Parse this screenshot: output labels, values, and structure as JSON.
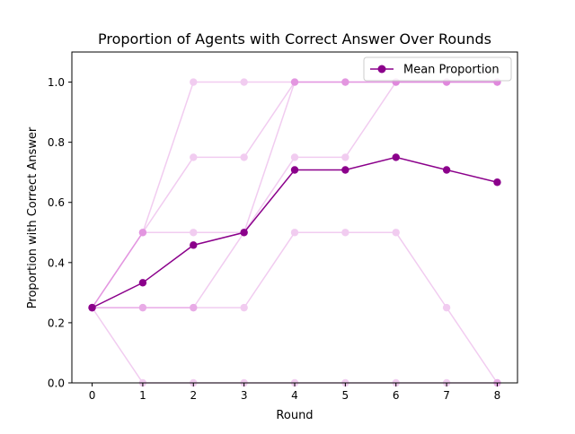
{
  "chart_data": {
    "type": "line",
    "title": "Proportion of Agents with Correct Answer Over Rounds",
    "xlabel": "Round",
    "ylabel": "Proportion with Correct Answer",
    "x": [
      0,
      1,
      2,
      3,
      4,
      5,
      6,
      7,
      8
    ],
    "xlim": [
      -0.4,
      8.4
    ],
    "ylim": [
      0,
      1.1
    ],
    "xticks": [
      0,
      1,
      2,
      3,
      4,
      5,
      6,
      7,
      8
    ],
    "yticks": [
      0.0,
      0.2,
      0.4,
      0.6,
      0.8,
      1.0
    ],
    "ytick_labels": [
      "0.0",
      "0.2",
      "0.4",
      "0.6",
      "0.8",
      "1.0"
    ],
    "legend_position": "top-right",
    "background_series_color": "#DA70D6",
    "background_series_opacity": 0.35,
    "background_series": [
      [
        0.25,
        0.5,
        1.0,
        1.0,
        1.0,
        1.0,
        1.0,
        1.0,
        1.0
      ],
      [
        0.25,
        0.5,
        0.75,
        0.75,
        1.0,
        1.0,
        1.0,
        1.0,
        1.0
      ],
      [
        0.25,
        0.5,
        0.5,
        0.5,
        0.75,
        0.75,
        1.0,
        1.0,
        1.0
      ],
      [
        0.25,
        0.25,
        0.25,
        0.5,
        1.0,
        1.0,
        1.0,
        1.0,
        1.0
      ],
      [
        0.25,
        0.25,
        0.25,
        0.25,
        0.5,
        0.5,
        0.5,
        0.25,
        0.0
      ],
      [
        0.25,
        0.0,
        0.0,
        0.0,
        0.0,
        0.0,
        0.0,
        0.0,
        0.0
      ]
    ],
    "series": [
      {
        "name": "Mean Proportion",
        "color": "#8B008B",
        "values": [
          0.25,
          0.333,
          0.458,
          0.5,
          0.708,
          0.708,
          0.75,
          0.708,
          0.667
        ]
      }
    ]
  }
}
